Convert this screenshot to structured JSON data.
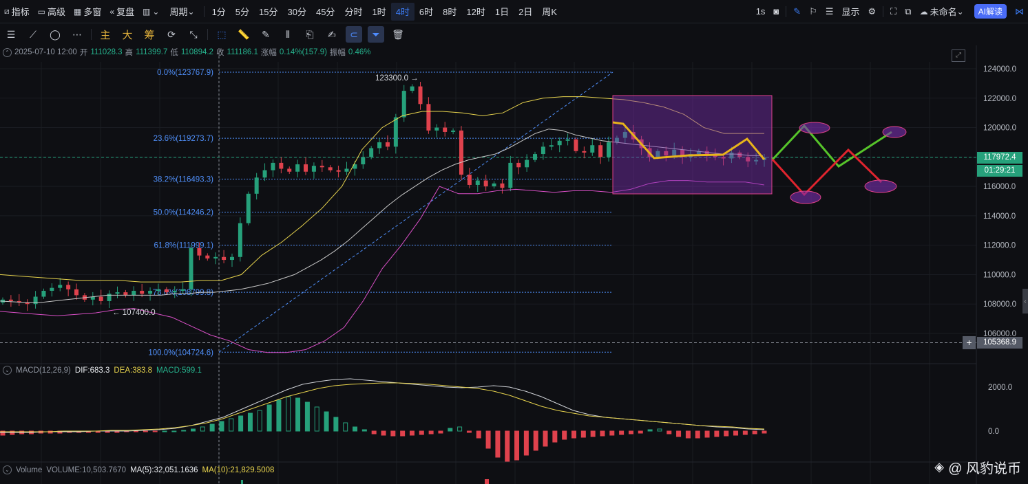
{
  "toolbar": {
    "indicator": "指标",
    "advanced": "高级",
    "multi_window": "多窗",
    "replay": "复盘",
    "period": "周期",
    "intervals": [
      "1分",
      "5分",
      "15分",
      "30分",
      "45分",
      "分时",
      "1时",
      "4时",
      "6时",
      "8时",
      "12时",
      "1日",
      "2日",
      "周K"
    ],
    "active_interval": "4时",
    "right": {
      "seconds": "1s",
      "display": "显示",
      "unnamed": "未命名",
      "ai": "AI解读"
    }
  },
  "drawing_toolbar": {
    "main": "主",
    "big": "大",
    "chip": "筹"
  },
  "ohlc": {
    "date": "2025-07-10 12:00",
    "open_label": "开",
    "open": "111028.3",
    "high_label": "高",
    "high": "111399.7",
    "low_label": "低",
    "low": "110894.2",
    "close_label": "收",
    "close": "111186.1",
    "change_label": "涨幅",
    "change": "0.14%(157.9)",
    "amp_label": "振幅",
    "amp": "0.46%"
  },
  "price_axis": [
    "124000.0",
    "122000.0",
    "120000.0",
    "118000.0",
    "116000.0",
    "114000.0",
    "112000.0",
    "110000.0",
    "108000.0",
    "106000.0"
  ],
  "fib_levels": [
    {
      "label": "0.0%(123767.9)",
      "price": 123767.9
    },
    {
      "label": "23.6%(119273.7)",
      "price": 119273.7
    },
    {
      "label": "38.2%(116493.3)",
      "price": 116493.3
    },
    {
      "label": "50.0%(114246.2)",
      "price": 114246.2
    },
    {
      "label": "61.8%(111999.1)",
      "price": 111999.1
    },
    {
      "label": "78.6%(108799.8)",
      "price": 108799.8
    },
    {
      "label": "100.0%(104724.6)",
      "price": 104724.6
    }
  ],
  "annotations": {
    "high": "123300.0 →",
    "low": "← 107400.0"
  },
  "current_price": {
    "value": "117972.4",
    "timer": "01:29:21",
    "crosshair": "105368.9"
  },
  "macd": {
    "name": "MACD(12,26,9)",
    "dif": "DIF:683.3",
    "dea": "DEA:383.8",
    "macd": "MACD:599.1",
    "axis": [
      "2000.0",
      "0.0"
    ]
  },
  "volume": {
    "name": "Volume",
    "vol": "VOLUME:10,503.7670",
    "ma5": "MA(5):32,051.1636",
    "ma10": "MA(10):21,829.5008"
  },
  "watermark": "@ 风豹说币",
  "colors": {
    "up": "#26a17b",
    "down": "#e0424d",
    "accent": "#3b7cf6",
    "fib": "#4f8ef7",
    "boll_mid": "#c9c9c9",
    "boll_up": "#e8d44d",
    "boll_low": "#d94fc6"
  }
}
